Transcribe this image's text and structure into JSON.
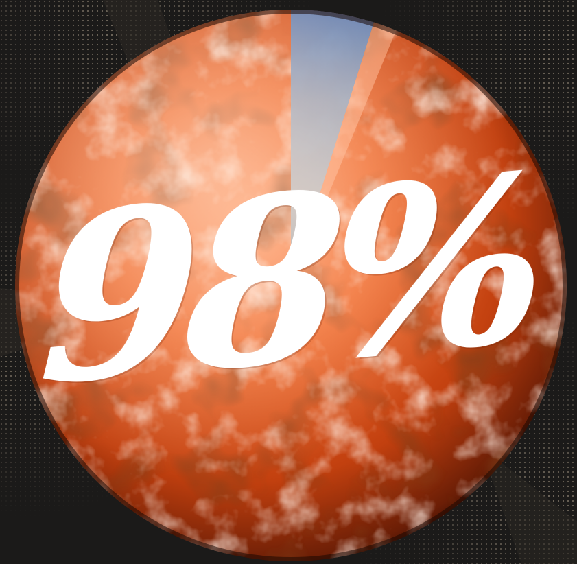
{
  "headline": {
    "value": "98%",
    "share": 0.98
  },
  "colors": {
    "background": "#1b1a19",
    "dots": "#8a7f70",
    "globe_warm": "#e2531e",
    "globe_dark": "#3a0f04",
    "globe_light": "#ffb38a",
    "slice_blue": "#4d78b8",
    "slice_grey": "#b9c2c8",
    "number": "#ffffff"
  },
  "icons": {
    "globe": "earth-globe-icon"
  }
}
